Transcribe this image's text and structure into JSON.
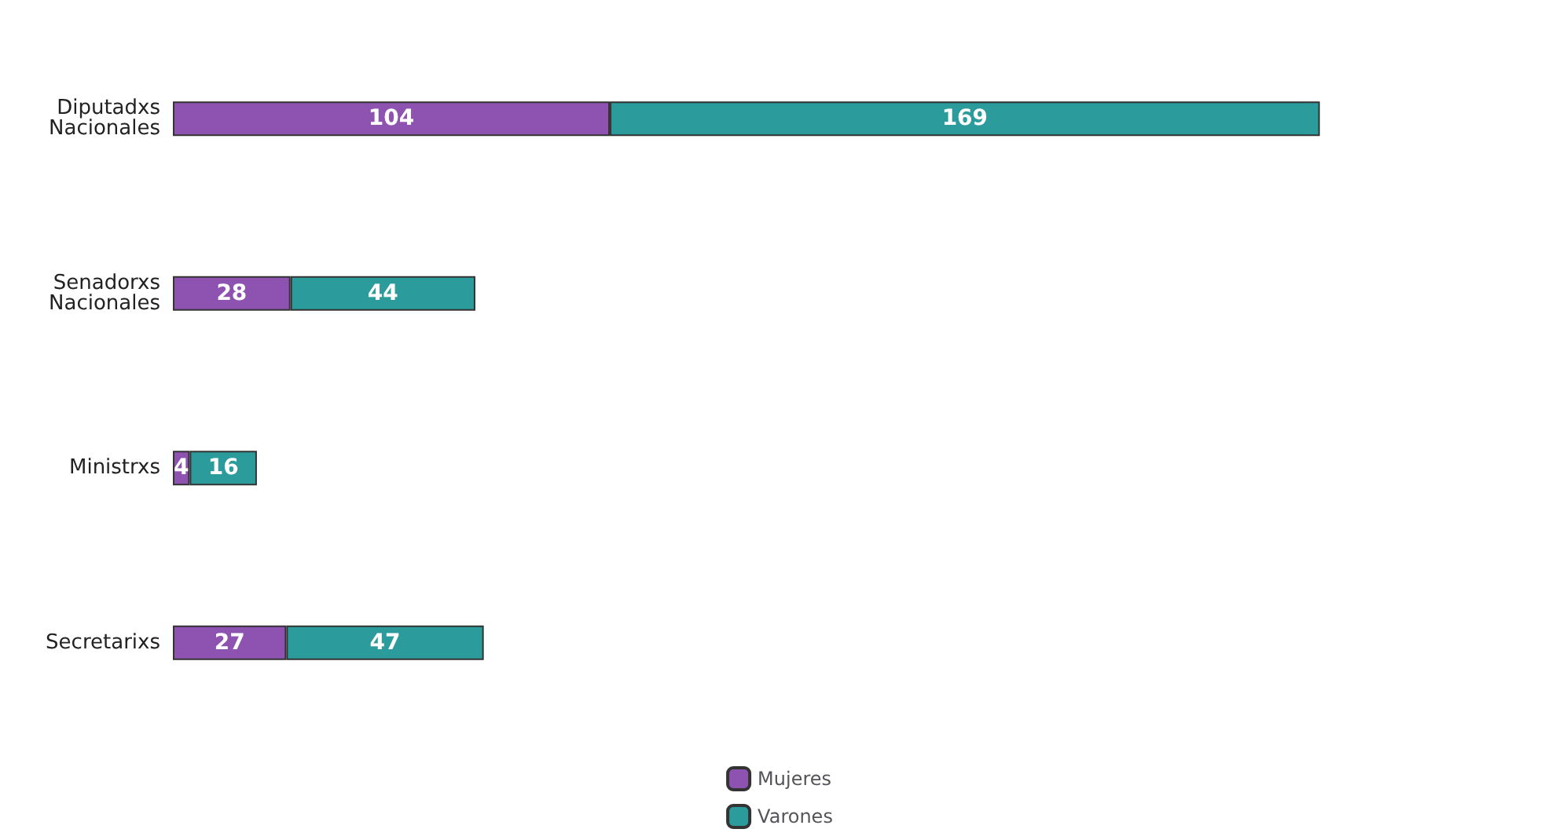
{
  "chart_data": {
    "type": "bar",
    "orientation": "horizontal",
    "stacked": true,
    "categories": [
      "Diputadxs Nacionales",
      "Senadorxs Nacionales",
      "Ministrxs",
      "Secretarixs"
    ],
    "series": [
      {
        "name": "Mujeres",
        "color": "#8e52b0",
        "values": [
          104,
          28,
          4,
          27
        ]
      },
      {
        "name": "Varones",
        "color": "#2b9b9b",
        "values": [
          169,
          44,
          16,
          47
        ]
      }
    ],
    "data_labels": true,
    "legend": "bottom"
  }
}
